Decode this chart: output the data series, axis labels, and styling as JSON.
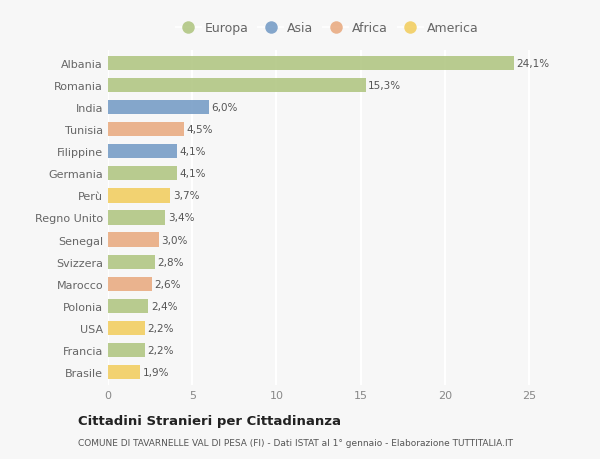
{
  "categories": [
    "Albania",
    "Romania",
    "India",
    "Tunisia",
    "Filippine",
    "Germania",
    "Perù",
    "Regno Unito",
    "Senegal",
    "Svizzera",
    "Marocco",
    "Polonia",
    "USA",
    "Francia",
    "Brasile"
  ],
  "values": [
    24.1,
    15.3,
    6.0,
    4.5,
    4.1,
    4.1,
    3.7,
    3.4,
    3.0,
    2.8,
    2.6,
    2.4,
    2.2,
    2.2,
    1.9
  ],
  "labels": [
    "24,1%",
    "15,3%",
    "6,0%",
    "4,5%",
    "4,1%",
    "4,1%",
    "3,7%",
    "3,4%",
    "3,0%",
    "2,8%",
    "2,6%",
    "2,4%",
    "2,2%",
    "2,2%",
    "1,9%"
  ],
  "continents": [
    "Europa",
    "Europa",
    "Asia",
    "Africa",
    "Asia",
    "Europa",
    "America",
    "Europa",
    "Africa",
    "Europa",
    "Africa",
    "Europa",
    "America",
    "Europa",
    "America"
  ],
  "colors": {
    "Europa": "#adc47d",
    "Asia": "#7098c4",
    "Africa": "#e8a87c",
    "America": "#f2cc5a"
  },
  "legend_order": [
    "Europa",
    "Asia",
    "Africa",
    "America"
  ],
  "background_color": "#f7f7f7",
  "title": "Cittadini Stranieri per Cittadinanza",
  "subtitle": "COMUNE DI TAVARNELLE VAL DI PESA (FI) - Dati ISTAT al 1° gennaio - Elaborazione TUTTITALIA.IT",
  "xlim": [
    0,
    26
  ],
  "xticks": [
    0,
    5,
    10,
    15,
    20,
    25
  ],
  "bar_height": 0.65,
  "grid_color": "#ffffff",
  "label_color": "#555555",
  "ytick_color": "#666666"
}
